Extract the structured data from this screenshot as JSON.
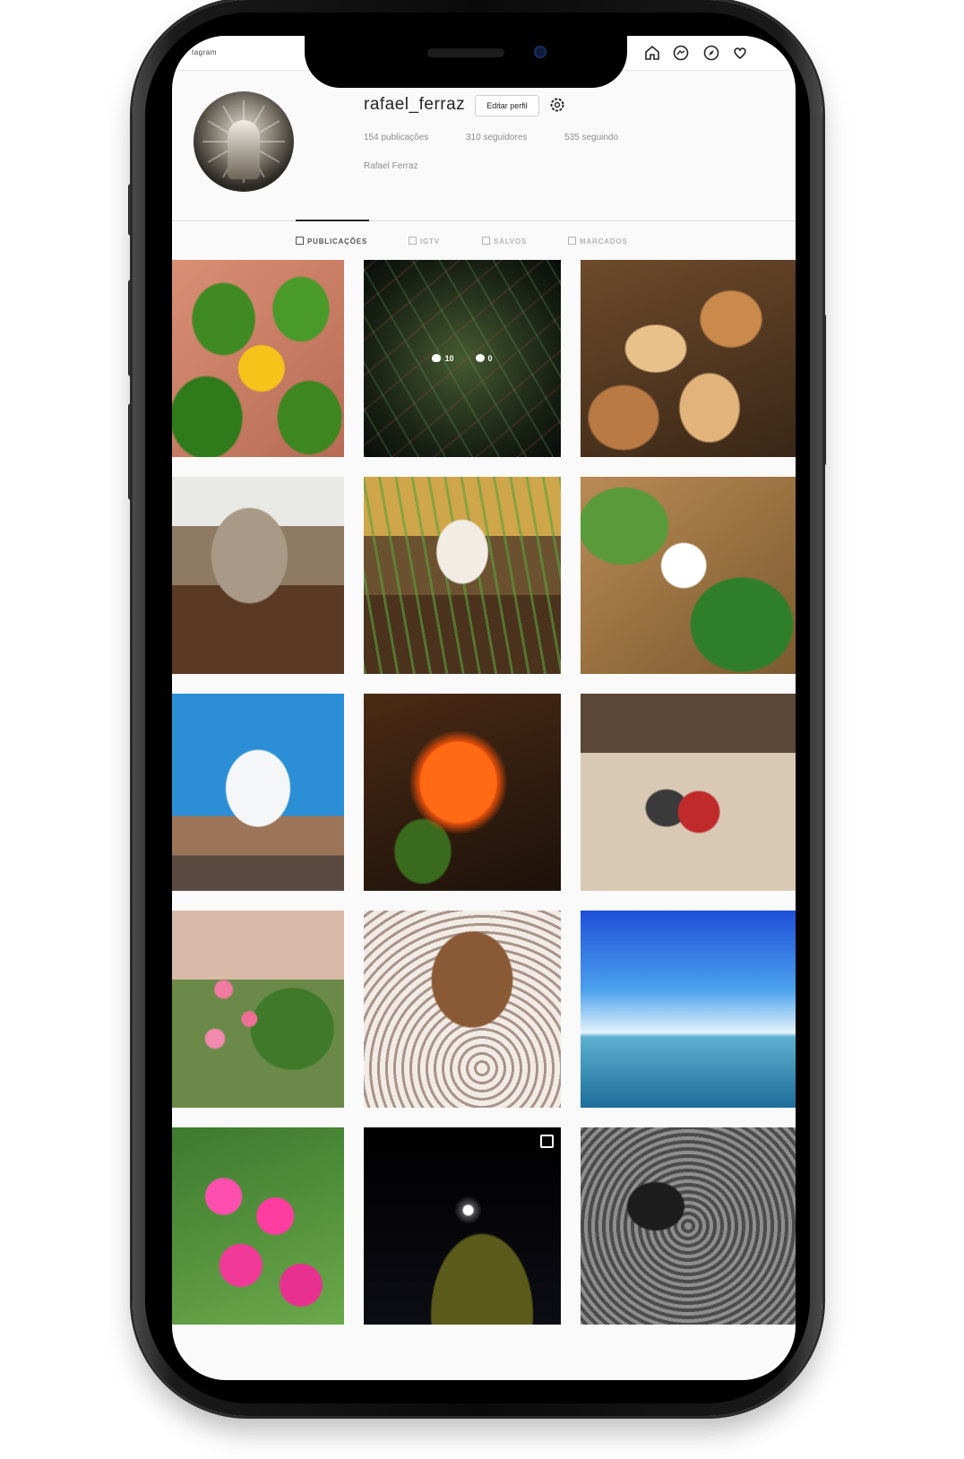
{
  "topbar": {
    "logo_text": "tagram",
    "nav_icons": [
      "home-icon",
      "messenger-icon",
      "explore-compass-icon",
      "heart-icon"
    ]
  },
  "profile": {
    "username": "rafael_ferraz",
    "edit_button": "Editar perfil",
    "posts": "154 publicações",
    "followers": "310 seguidores",
    "following": "535 seguindo",
    "full_name": "Rafael Ferraz"
  },
  "tabs": [
    {
      "label": "PUBLICAÇÕES",
      "icon": "grid-icon",
      "active": true
    },
    {
      "label": "IGTV",
      "icon": "igtv-icon",
      "active": false
    },
    {
      "label": "SALVOS",
      "icon": "bookmark-icon",
      "active": false
    },
    {
      "label": "MARCADOS",
      "icon": "tagged-icon",
      "active": false
    }
  ],
  "hover_overlay": {
    "likes": "10",
    "comments": "0"
  },
  "colors": {
    "accent_text": "#262626",
    "muted_text": "#8e8e8e",
    "border": "#dbdbdb"
  },
  "posts": [
    {
      "subject": "yellow-flower"
    },
    {
      "subject": "spider-web"
    },
    {
      "subject": "fried-snacks"
    },
    {
      "subject": "mushroom"
    },
    {
      "subject": "mushroom-in-grass"
    },
    {
      "subject": "white-flower"
    },
    {
      "subject": "white-tree"
    },
    {
      "subject": "orange-flowers"
    },
    {
      "subject": "sleeping-cat"
    },
    {
      "subject": "pink-blossoms"
    },
    {
      "subject": "dog-on-blanket"
    },
    {
      "subject": "lake-sky"
    },
    {
      "subject": "bougainvillea"
    },
    {
      "subject": "night-moon"
    },
    {
      "subject": "grey-dog"
    }
  ]
}
